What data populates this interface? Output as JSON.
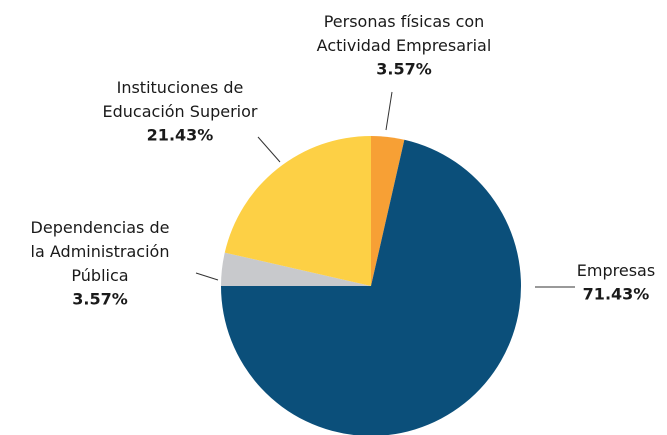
{
  "chart_data": {
    "type": "pie",
    "categories": [
      "Personas físicas con Actividad Empresarial",
      "Empresas",
      "Dependencias de la Administración Pública",
      "Instituciones de Educación Superior"
    ],
    "values": [
      3.57,
      71.43,
      3.57,
      21.43
    ],
    "value_labels": [
      "3.57%",
      "71.43%",
      "3.57%",
      "21.43%"
    ],
    "colors": [
      "#f7a035",
      "#0b4f7a",
      "#c8c9cc",
      "#fdd045"
    ]
  }
}
